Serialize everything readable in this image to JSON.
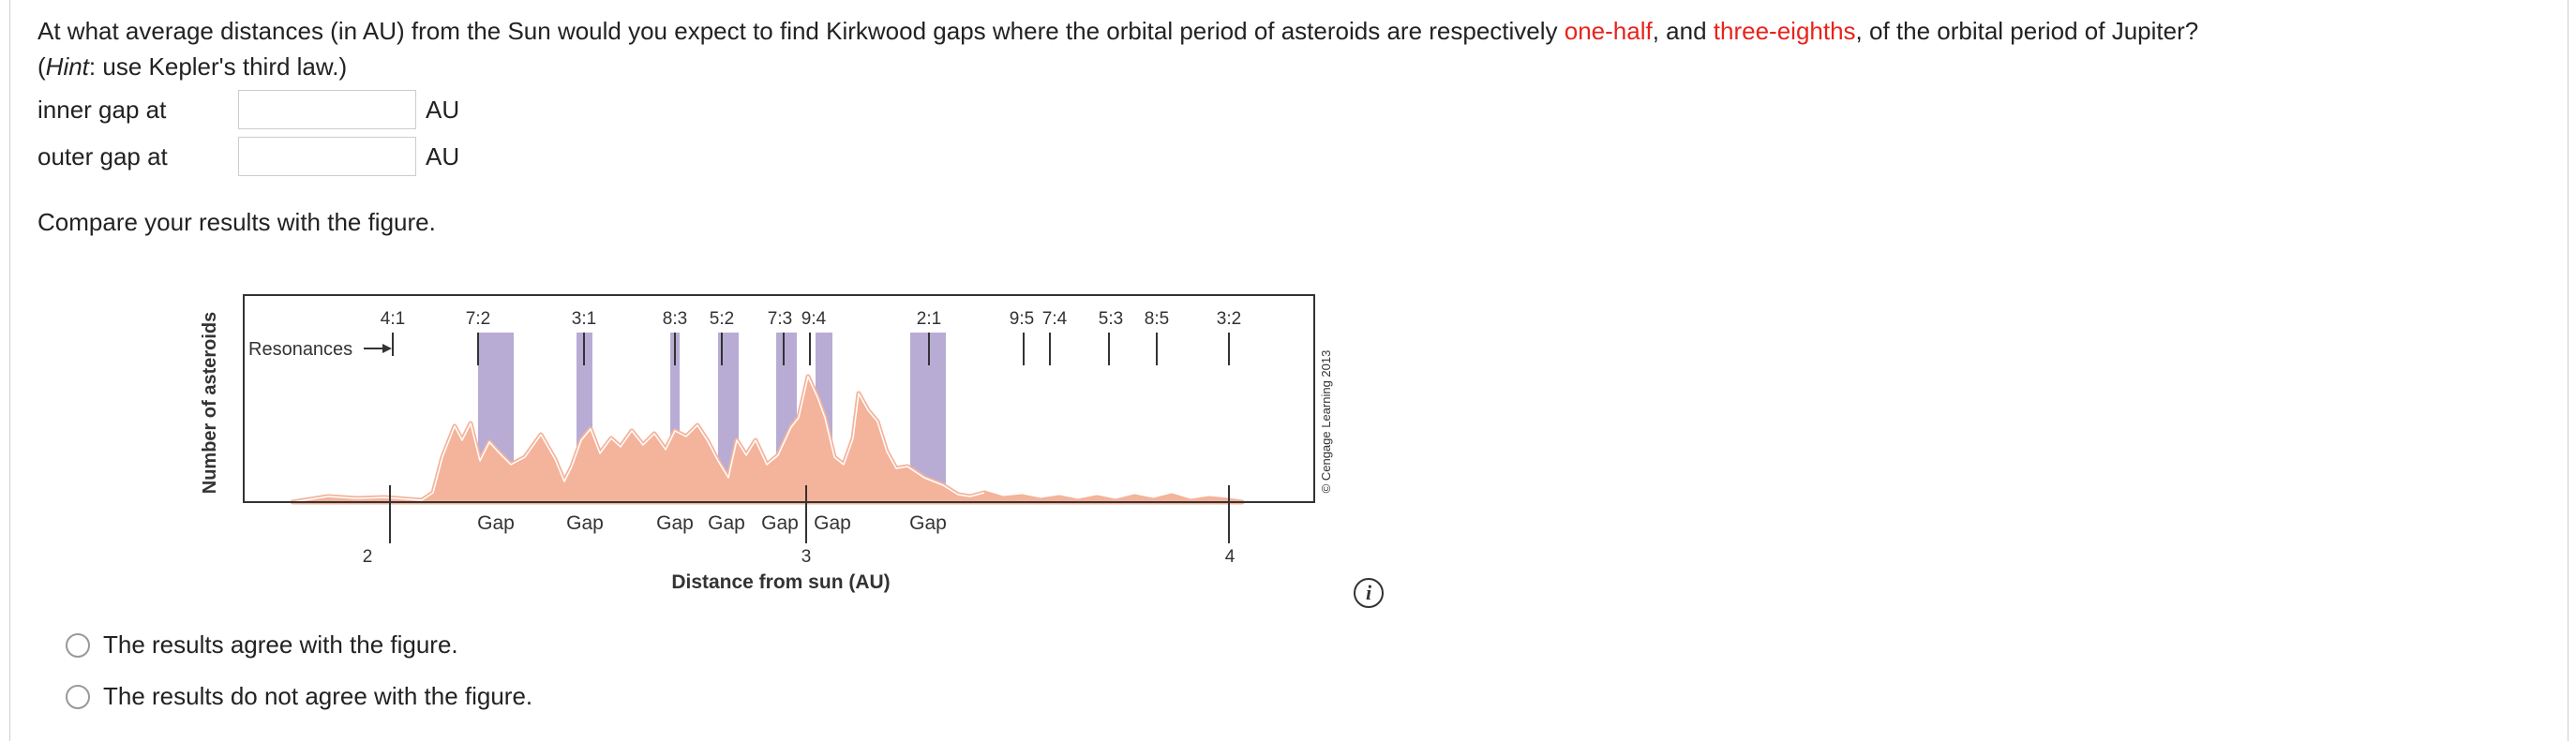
{
  "question": {
    "part1": "At what average distances (in AU) from the Sun would you expect to find Kirkwood gaps where the orbital period of asteroids are respectively ",
    "red1": "one-half",
    "part2": ", and ",
    "red2": "three-eighths",
    "part3": ", of the orbital period of Jupiter?",
    "hint_open": "(",
    "hint_word": "Hint",
    "hint_rest": ": use Kepler's third law.)"
  },
  "inputs": {
    "inner": {
      "label": "inner gap at",
      "value": "",
      "unit": "AU"
    },
    "outer": {
      "label": "outer gap at",
      "value": "",
      "unit": "AU"
    }
  },
  "compare_text": "Compare your results with the figure.",
  "figure": {
    "ylabel": "Number of asteroids",
    "xlabel": "Distance from sun (AU)",
    "resonances_label": "Resonances",
    "copyright": "© Cengage Learning 2013",
    "ticks": [
      "2",
      "3",
      "4"
    ],
    "resonances": [
      "4:1",
      "7:2",
      "3:1",
      "8:3",
      "5:2",
      "7:3",
      "9:4",
      "2:1",
      "9:5",
      "7:4",
      "5:3",
      "8:5",
      "3:2"
    ],
    "gap_label": "Gap",
    "colors": {
      "gap_band": "#b8acd4",
      "curve_fill": "#f4b39b",
      "curve_stroke": "#ffffff"
    }
  },
  "options": [
    {
      "label": "The results agree with the figure."
    },
    {
      "label": "The results do not agree with the figure."
    }
  ]
}
